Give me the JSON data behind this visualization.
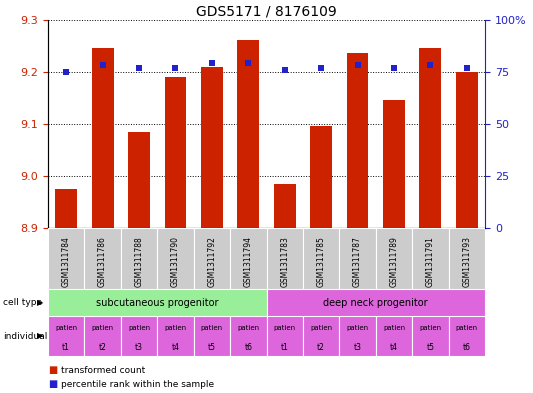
{
  "title": "GDS5171 / 8176109",
  "samples": [
    "GSM1311784",
    "GSM1311786",
    "GSM1311788",
    "GSM1311790",
    "GSM1311792",
    "GSM1311794",
    "GSM1311783",
    "GSM1311785",
    "GSM1311787",
    "GSM1311789",
    "GSM1311791",
    "GSM1311793"
  ],
  "bar_values": [
    8.975,
    9.245,
    9.085,
    9.19,
    9.21,
    9.26,
    8.985,
    9.095,
    9.235,
    9.145,
    9.245,
    9.2
  ],
  "percentile_values": [
    75,
    78,
    77,
    77,
    79,
    79,
    76,
    77,
    78,
    77,
    78,
    77
  ],
  "ylim_left": [
    8.9,
    9.3
  ],
  "ylim_right": [
    0,
    100
  ],
  "yticks_left": [
    8.9,
    9.0,
    9.1,
    9.2,
    9.3
  ],
  "yticks_right": [
    0,
    25,
    50,
    75,
    100
  ],
  "bar_color": "#cc2200",
  "dot_color": "#2222cc",
  "cell_type_colors": [
    "#99ee99",
    "#dd66dd"
  ],
  "individual_color": "#dd66dd",
  "gsm_bg_color": "#cccccc",
  "cell_types": [
    "subcutaneous progenitor",
    "deep neck progenitor"
  ],
  "individuals": [
    "t1",
    "t2",
    "t3",
    "t4",
    "t5",
    "t6",
    "t1",
    "t2",
    "t3",
    "t4",
    "t5",
    "t6"
  ],
  "legend_bar_color": "#cc2200",
  "legend_dot_color": "#2222cc"
}
